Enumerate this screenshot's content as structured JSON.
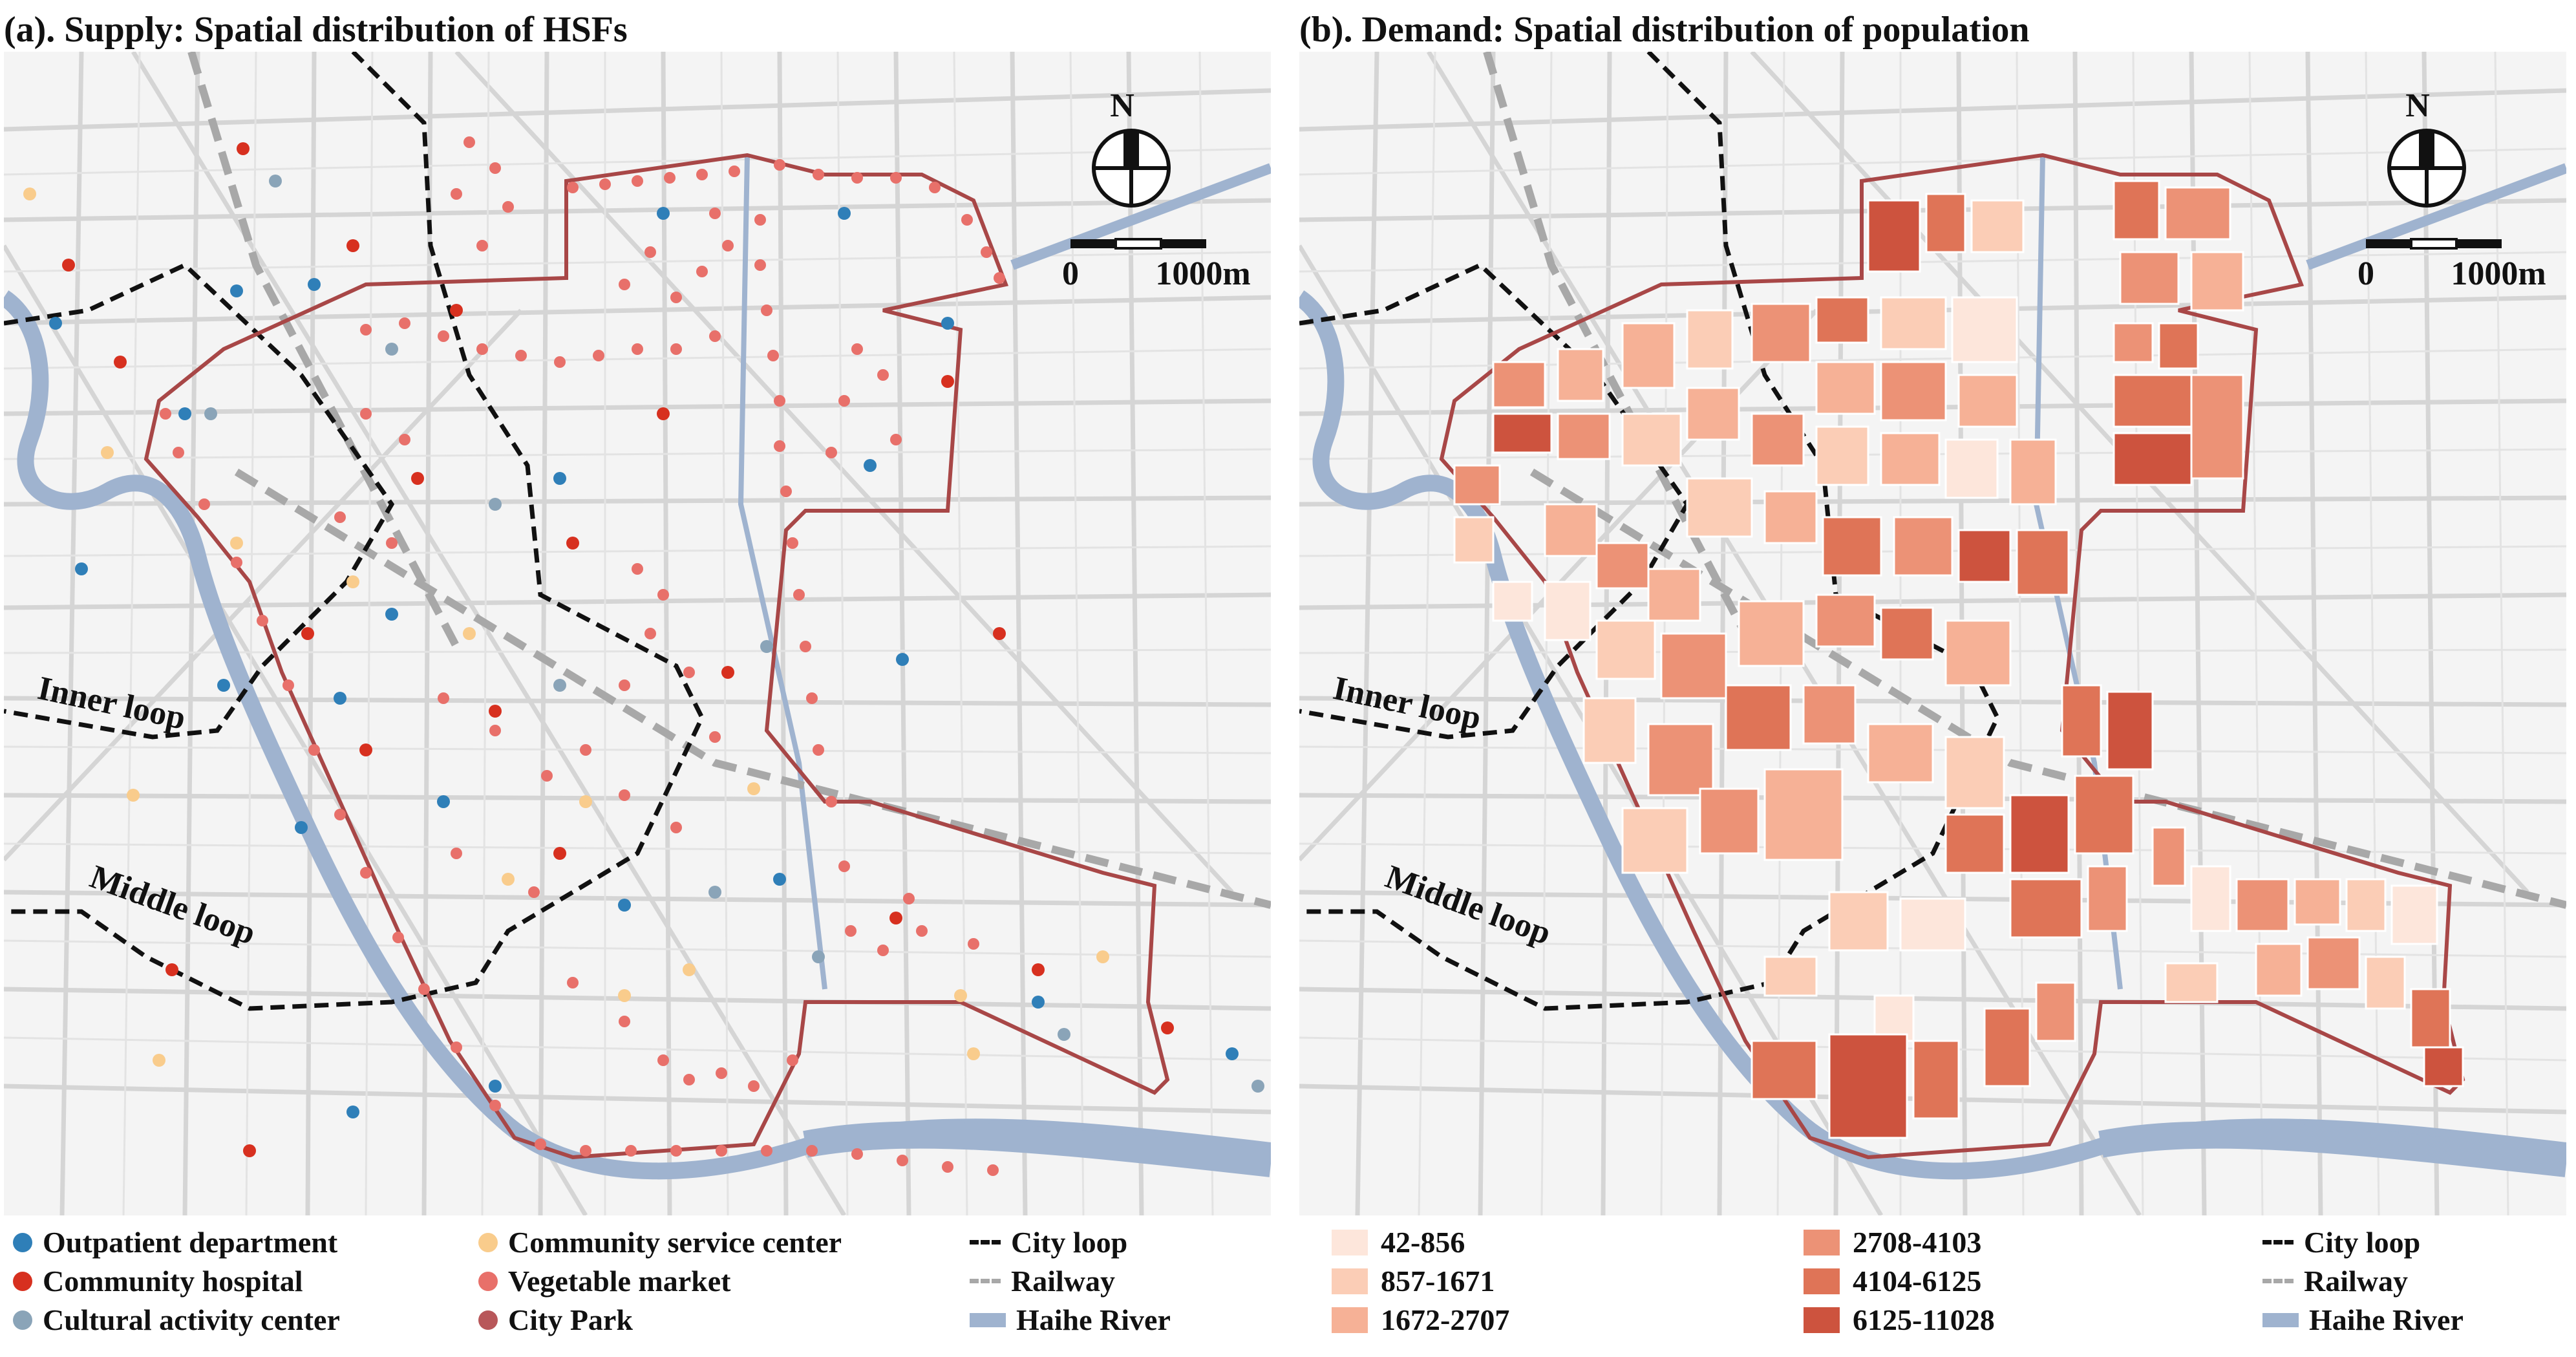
{
  "panels": {
    "a": {
      "title": "(a). Supply: Spatial distribution of HSFs"
    },
    "b": {
      "title": "(b). Demand: Spatial distribution of  population"
    }
  },
  "map_labels": {
    "inner_loop": "Inner loop",
    "middle_loop": "Middle loop",
    "north": "N",
    "scale_zero": "0",
    "scale_dist": "1000m"
  },
  "legend_a": {
    "outpatient": {
      "label": "Outpatient department",
      "color": "#2f7fb8"
    },
    "hospital": {
      "label": "Community hospital",
      "color": "#d7301f"
    },
    "cultural": {
      "label": "Cultural activity center",
      "color": "#8aa4b8"
    },
    "service": {
      "label": "Community service center",
      "color": "#f9cc8c"
    },
    "vegetable": {
      "label": "Vegetable market",
      "color": "#e8706a"
    },
    "park": {
      "label": "City Park",
      "color": "#b8575a"
    }
  },
  "legend_b": {
    "c1": {
      "label": "42-856",
      "color": "#fde6db"
    },
    "c2": {
      "label": "857-1671",
      "color": "#fbcdb6"
    },
    "c3": {
      "label": "1672-2707",
      "color": "#f6b196"
    },
    "c4": {
      "label": "2708-4103",
      "color": "#ec9276"
    },
    "c5": {
      "label": "4104-6125",
      "color": "#df7457"
    },
    "c6": {
      "label": "6125-11028",
      "color": "#cd533e"
    }
  },
  "legend_common": {
    "city_loop": "City loop",
    "railway": "Railway",
    "river": "Haihe River"
  },
  "colors": {
    "boundary": "#a84747",
    "river": "#9fb3cf",
    "road": "#d5d5d5",
    "railway": "#a8a8a8",
    "loop": "#111111"
  }
}
